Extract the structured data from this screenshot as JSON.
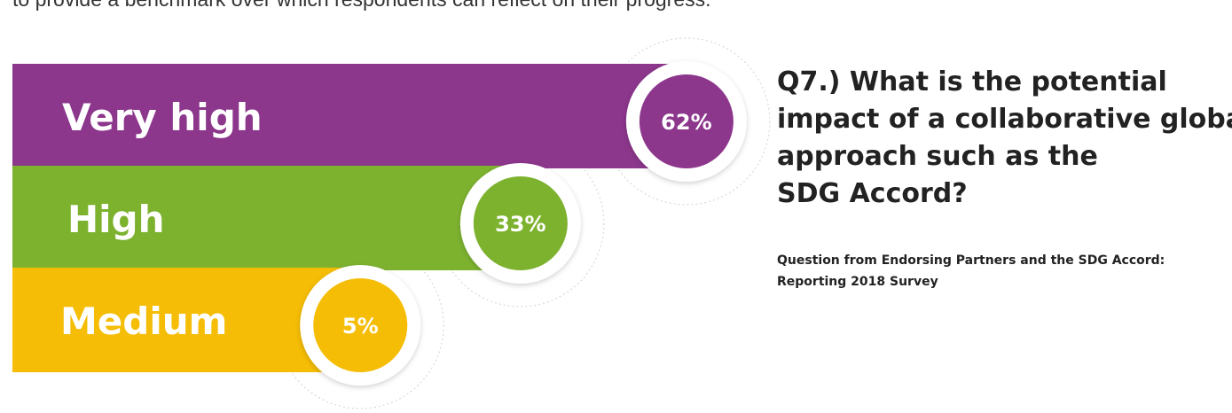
{
  "top_text_fragment": "to provide a benchmark over which respondents can reflect on their progress. (partially cut off at top)",
  "question": {
    "lines": [
      "Q7.) What is the potential",
      "impact of a collaborative global",
      "approach such as the",
      "SDG Accord?"
    ]
  },
  "source": {
    "lines": [
      "Question from Endorsing Partners and the SDG Accord:",
      "Reporting 2018 Survey"
    ]
  },
  "colors": {
    "very_high": "#8c368c",
    "high": "#7db22f",
    "medium": "#f5bd05",
    "label_text": "#ffffff"
  },
  "chart_data": {
    "type": "bar",
    "categories": [
      "Very high",
      "High",
      "Medium"
    ],
    "values": [
      62,
      33,
      5
    ],
    "value_labels": [
      "62%",
      "33%",
      "5%"
    ],
    "unit": "%",
    "title": "",
    "xlabel": "",
    "ylabel": ""
  }
}
